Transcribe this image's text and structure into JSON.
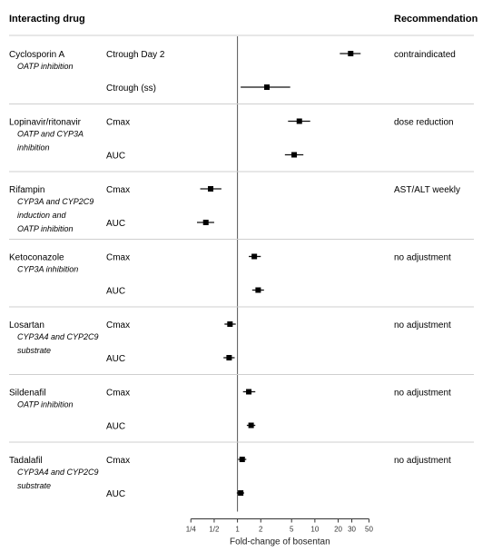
{
  "header": {
    "left": "Interacting drug",
    "right": "Recommendation"
  },
  "chart_data": {
    "type": "forest",
    "x_scale": "log2",
    "xlim": [
      0.2,
      55
    ],
    "reference_line": 1,
    "xlabel": "Fold-change of bosentan",
    "xticks": [
      {
        "value": 0.25,
        "label": "1/4"
      },
      {
        "value": 0.5,
        "label": "1/2"
      },
      {
        "value": 1,
        "label": "1"
      },
      {
        "value": 2,
        "label": "2"
      },
      {
        "value": 5,
        "label": "5"
      },
      {
        "value": 10,
        "label": "10"
      },
      {
        "value": 20,
        "label": "20"
      },
      {
        "value": 30,
        "label": "30"
      },
      {
        "value": 50,
        "label": "50"
      }
    ],
    "groups": [
      {
        "drug": "Cyclosporin A",
        "mechanism": [
          "OATP inhibition"
        ],
        "recommendation": "contraindicated",
        "rows": [
          {
            "param": "Ctrough Day 2",
            "estimate": 29,
            "lower": 21,
            "upper": 39
          },
          {
            "param": "Ctrough (ss)",
            "estimate": 2.4,
            "lower": 1.1,
            "upper": 4.8
          }
        ]
      },
      {
        "drug": "Lopinavir/ritonavir",
        "mechanism": [
          "OATP and CYP3A",
          "inhibition"
        ],
        "recommendation": "dose reduction",
        "rows": [
          {
            "param": "Cmax",
            "estimate": 6.3,
            "lower": 4.5,
            "upper": 8.7
          },
          {
            "param": "AUC",
            "estimate": 5.4,
            "lower": 4.1,
            "upper": 7.1
          }
        ]
      },
      {
        "drug": "Rifampin",
        "mechanism": [
          "CYP3A and CYP2C9",
          "induction and",
          "OATP inhibition"
        ],
        "recommendation": "AST/ALT weekly",
        "rows": [
          {
            "param": "Cmax",
            "estimate": 0.45,
            "lower": 0.33,
            "upper": 0.62
          },
          {
            "param": "AUC",
            "estimate": 0.39,
            "lower": 0.3,
            "upper": 0.5
          }
        ]
      },
      {
        "drug": "Ketoconazole",
        "mechanism": [
          "CYP3A inhibition"
        ],
        "recommendation": "no adjustment",
        "rows": [
          {
            "param": "Cmax",
            "estimate": 1.65,
            "lower": 1.4,
            "upper": 2.0
          },
          {
            "param": "AUC",
            "estimate": 1.85,
            "lower": 1.55,
            "upper": 2.2
          }
        ]
      },
      {
        "drug": "Losartan",
        "mechanism": [
          "CYP3A4 and CYP2C9",
          "substrate"
        ],
        "recommendation": "no adjustment",
        "rows": [
          {
            "param": "Cmax",
            "estimate": 0.8,
            "lower": 0.68,
            "upper": 0.95
          },
          {
            "param": "AUC",
            "estimate": 0.78,
            "lower": 0.66,
            "upper": 0.92
          }
        ]
      },
      {
        "drug": "Sildenafil",
        "mechanism": [
          "OATP inhibition"
        ],
        "recommendation": "no adjustment",
        "rows": [
          {
            "param": "Cmax",
            "estimate": 1.4,
            "lower": 1.18,
            "upper": 1.7
          },
          {
            "param": "AUC",
            "estimate": 1.5,
            "lower": 1.32,
            "upper": 1.7
          }
        ]
      },
      {
        "drug": "Tadalafil",
        "mechanism": [
          "CYP3A4 and CYP2C9",
          "substrate"
        ],
        "recommendation": "no adjustment",
        "rows": [
          {
            "param": "Cmax",
            "estimate": 1.15,
            "lower": 1.02,
            "upper": 1.3
          },
          {
            "param": "AUC",
            "estimate": 1.1,
            "lower": 0.98,
            "upper": 1.22
          }
        ]
      }
    ]
  }
}
